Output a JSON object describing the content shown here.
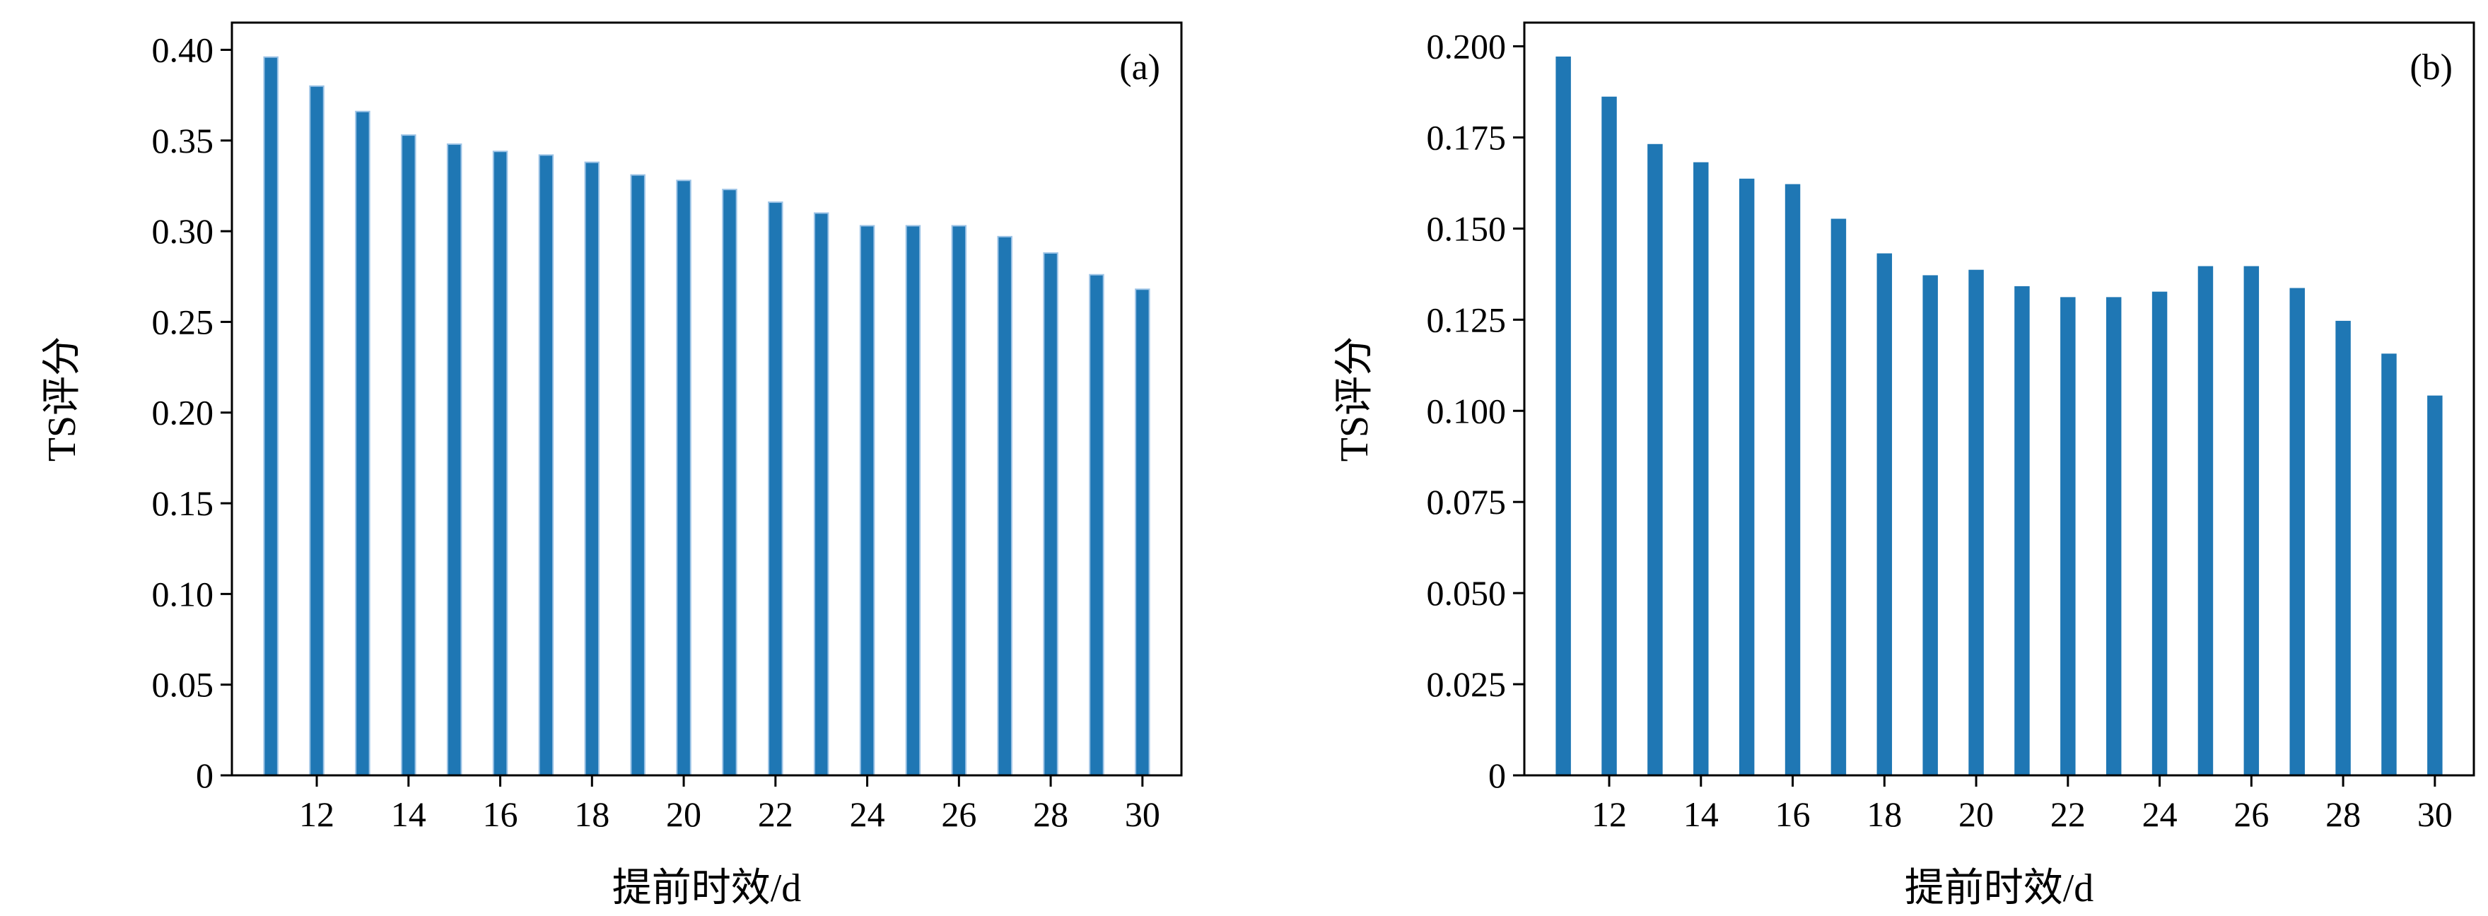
{
  "chart_data": [
    {
      "type": "bar",
      "panel_label": "(a)",
      "xlabel": "提前时效/d",
      "ylabel": "TS评分",
      "x": [
        11,
        12,
        13,
        14,
        15,
        16,
        17,
        18,
        19,
        20,
        21,
        22,
        23,
        24,
        25,
        26,
        27,
        28,
        29,
        30
      ],
      "values": [
        0.396,
        0.38,
        0.366,
        0.353,
        0.348,
        0.344,
        0.342,
        0.338,
        0.331,
        0.328,
        0.323,
        0.316,
        0.31,
        0.303,
        0.303,
        0.303,
        0.297,
        0.288,
        0.276,
        0.268
      ],
      "xticks": [
        12,
        14,
        16,
        18,
        20,
        22,
        24,
        26,
        28,
        30
      ],
      "xtick_labels": [
        "12",
        "14",
        "16",
        "18",
        "20",
        "22",
        "24",
        "26",
        "28",
        "30"
      ],
      "yticks": [
        0,
        0.05,
        0.1,
        0.15,
        0.2,
        0.25,
        0.3,
        0.35,
        0.4
      ],
      "ytick_labels": [
        "0",
        "0.05",
        "0.10",
        "0.15",
        "0.20",
        "0.25",
        "0.30",
        "0.35",
        "0.40"
      ],
      "xlim": [
        10.15,
        30.85
      ],
      "ylim": [
        0,
        0.415
      ],
      "bar_width": 0.3,
      "color": "#1f77b4",
      "edge_color": "#9cc3e6",
      "grid": false
    },
    {
      "type": "bar",
      "panel_label": "(b)",
      "xlabel": "提前时效/d",
      "ylabel": "TS评分",
      "x": [
        11,
        12,
        13,
        14,
        15,
        16,
        17,
        18,
        19,
        20,
        21,
        22,
        23,
        24,
        25,
        26,
        27,
        28,
        29,
        30
      ],
      "values": [
        0.197,
        0.186,
        0.173,
        0.168,
        0.1635,
        0.162,
        0.1525,
        0.143,
        0.137,
        0.1385,
        0.134,
        0.131,
        0.131,
        0.1325,
        0.1395,
        0.1395,
        0.1335,
        0.1245,
        0.1155,
        0.104
      ],
      "xticks": [
        12,
        14,
        16,
        18,
        20,
        22,
        24,
        26,
        28,
        30
      ],
      "xtick_labels": [
        "12",
        "14",
        "16",
        "18",
        "20",
        "22",
        "24",
        "26",
        "28",
        "30"
      ],
      "yticks": [
        0,
        0.025,
        0.05,
        0.075,
        0.1,
        0.125,
        0.15,
        0.175,
        0.2
      ],
      "ytick_labels": [
        "0",
        "0.025",
        "0.050",
        "0.075",
        "0.100",
        "0.125",
        "0.150",
        "0.175",
        "0.200"
      ],
      "xlim": [
        10.15,
        30.85
      ],
      "ylim": [
        0,
        0.2065
      ],
      "bar_width": 0.3,
      "color": "#1f77b4",
      "edge_color": "#1f77b4",
      "grid": false
    }
  ]
}
